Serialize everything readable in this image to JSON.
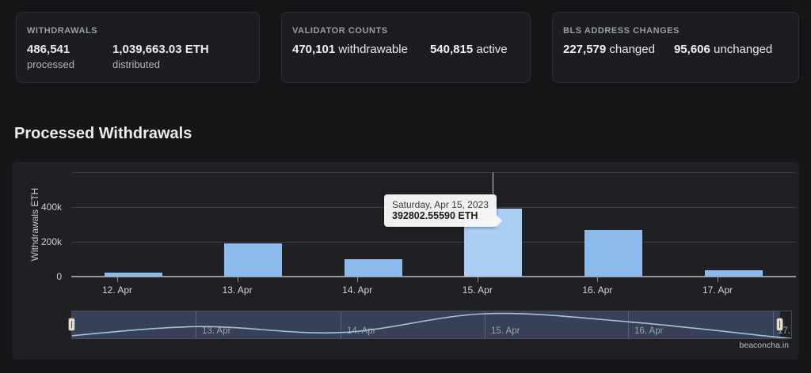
{
  "stats_cards": [
    {
      "title": "WITHDRAWALS",
      "metrics": [
        {
          "value": "486,541",
          "label": "processed"
        },
        {
          "value": "1,039,663.03 ETH",
          "label": "distributed"
        }
      ]
    },
    {
      "title": "VALIDATOR COUNTS",
      "metrics": [
        {
          "value": "470,101",
          "label": "withdrawable"
        },
        {
          "value": "540,815",
          "label": "active"
        }
      ]
    },
    {
      "title": "BLS ADDRESS CHANGES",
      "metrics": [
        {
          "value": "227,579",
          "label": "changed"
        },
        {
          "value": "95,606",
          "label": "unchanged"
        }
      ]
    }
  ],
  "section_title": "Processed Withdrawals",
  "chart_data": {
    "type": "bar",
    "title": "Processed Withdrawals",
    "ylabel": "Withdrawals ETH",
    "xlabel": "",
    "categories": [
      "12. Apr",
      "13. Apr",
      "14. Apr",
      "15. Apr",
      "16. Apr",
      "17. Apr"
    ],
    "values": [
      22000,
      193000,
      100000,
      392802.5559,
      268000,
      36000
    ],
    "yticks": [
      "0",
      "200k",
      "400k"
    ],
    "ylim": [
      0,
      600000
    ],
    "grid": true,
    "legend": false,
    "highlighted_index": 3,
    "tooltip": {
      "date": "Saturday, Apr 15, 2023",
      "value": "392802.55590 ETH"
    },
    "navigator_labels": [
      "13. Apr",
      "14. Apr",
      "15. Apr",
      "16. Apr",
      "17..."
    ],
    "colors": {
      "bar": "#8cbaea",
      "bar_hover": "#accef4",
      "nav_line": "#a9bedd"
    }
  },
  "watermark": "beaconcha.in"
}
